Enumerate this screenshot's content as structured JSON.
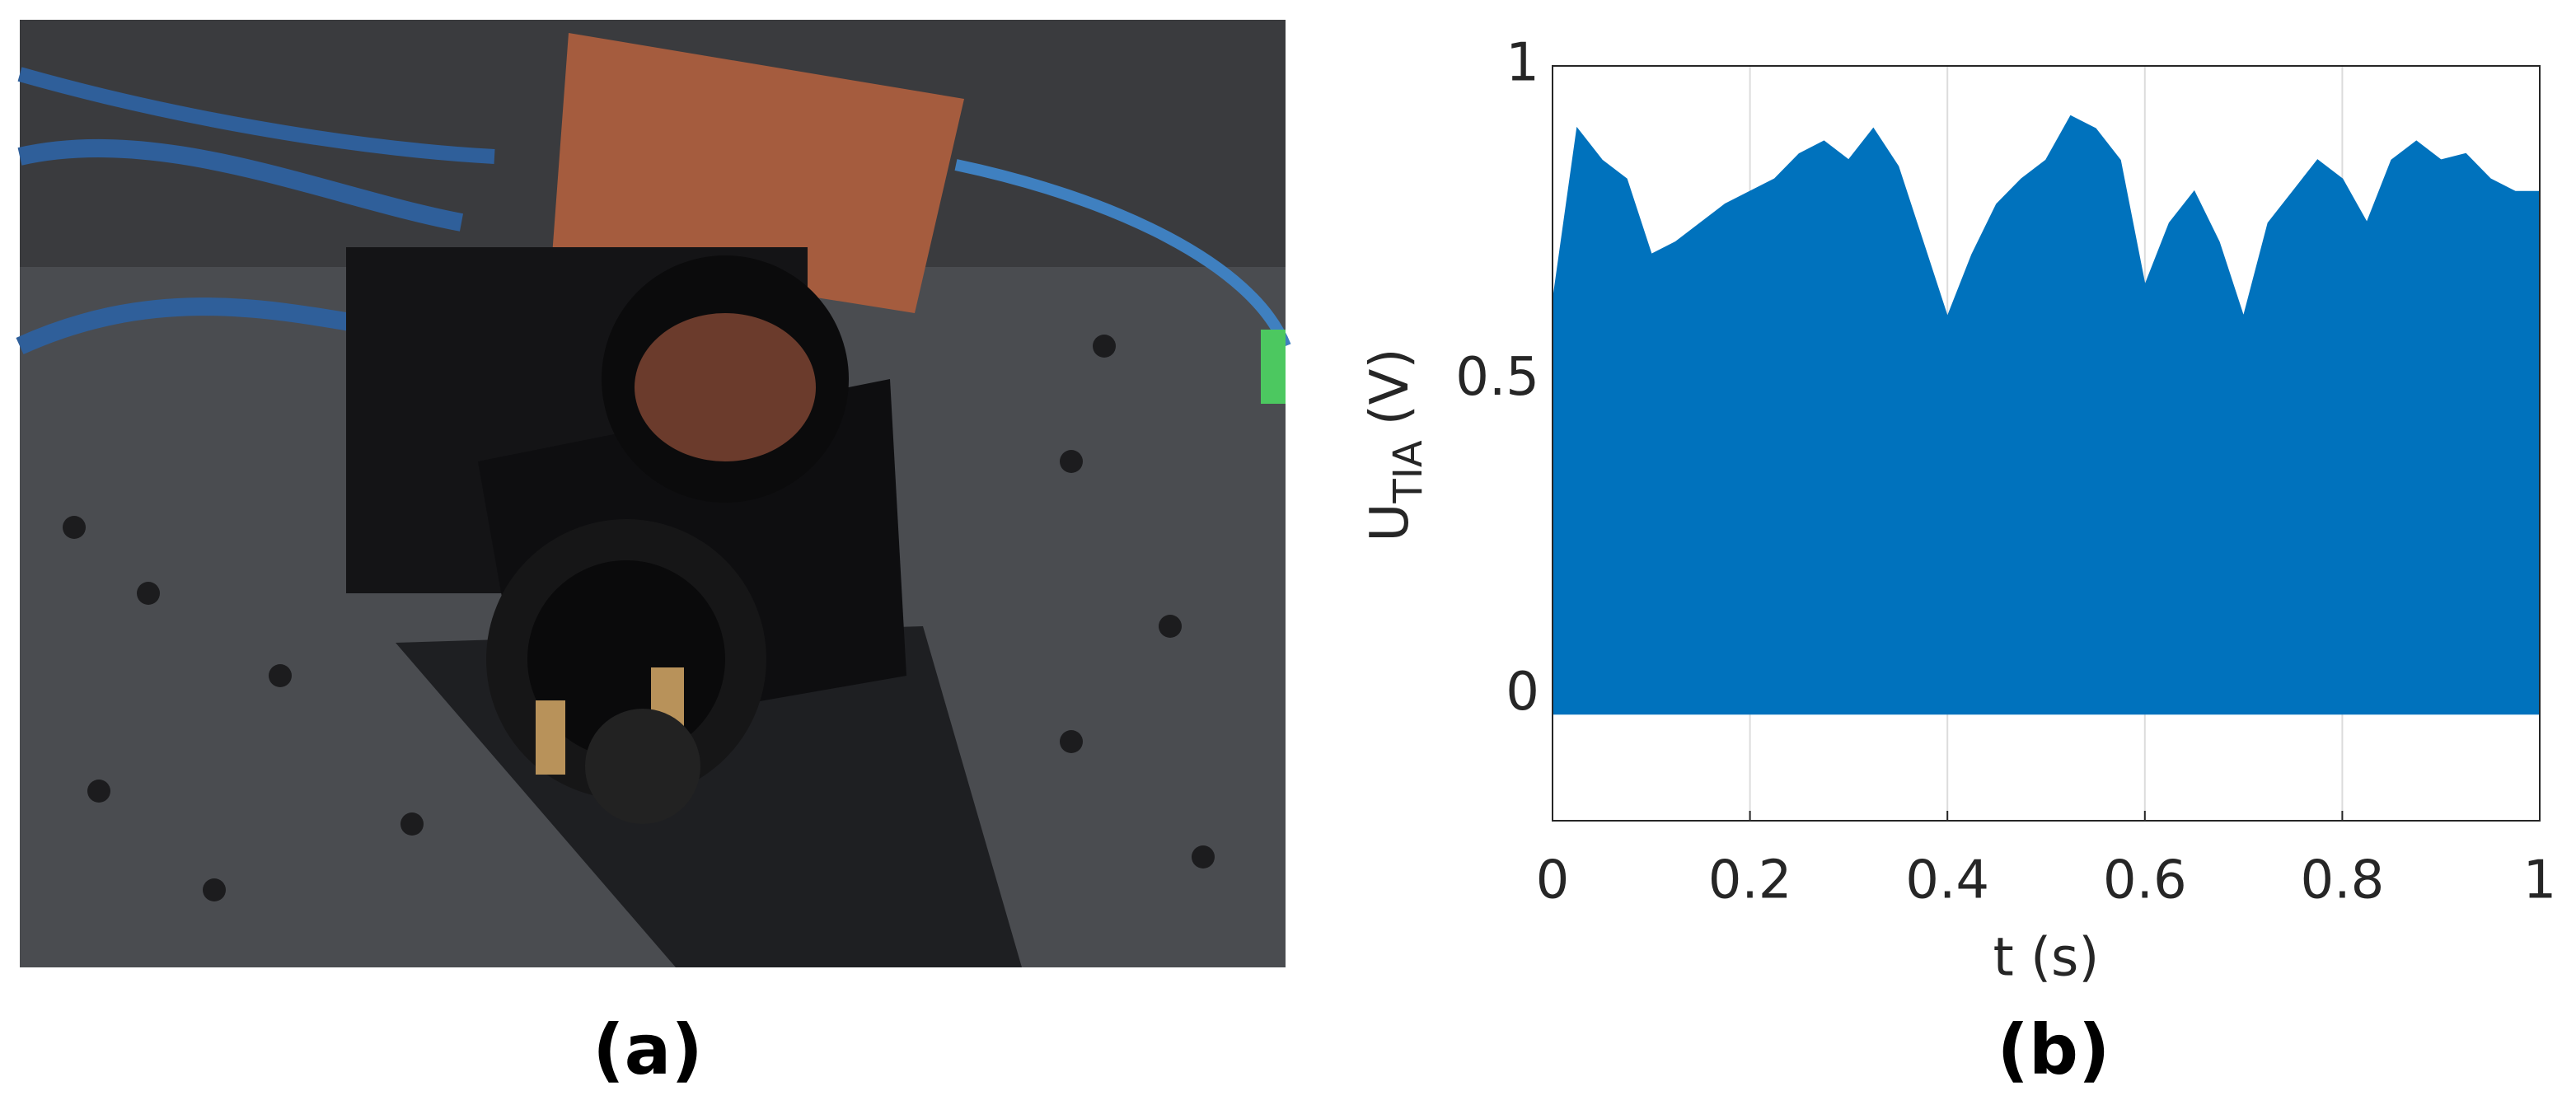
{
  "photo": {
    "caption": "(a)"
  },
  "chart_data": {
    "type": "range_area",
    "caption": "(b)",
    "xlabel": "t (s)",
    "ylabel": "U",
    "ylabel_sub": "TIA",
    "ylabel_unit": "(V)",
    "color": "#0072bd",
    "x": [
      0,
      0.025,
      0.05,
      0.075,
      0.1,
      0.125,
      0.15,
      0.175,
      0.2,
      0.225,
      0.25,
      0.275,
      0.3,
      0.325,
      0.35,
      0.375,
      0.4,
      0.425,
      0.45,
      0.475,
      0.5,
      0.525,
      0.55,
      0.575,
      0.6,
      0.625,
      0.65,
      0.675,
      0.7,
      0.725,
      0.75,
      0.775,
      0.8,
      0.825,
      0.85,
      0.875,
      0.9,
      0.925,
      0.95,
      0.975,
      1
    ],
    "values": [
      0.62,
      0.9,
      0.85,
      0.82,
      0.7,
      0.72,
      0.75,
      0.78,
      0.8,
      0.82,
      0.86,
      0.88,
      0.85,
      0.9,
      0.84,
      0.72,
      0.6,
      0.7,
      0.78,
      0.82,
      0.85,
      0.92,
      0.9,
      0.85,
      0.65,
      0.75,
      0.8,
      0.72,
      0.6,
      0.75,
      0.8,
      0.85,
      0.82,
      0.75,
      0.85,
      0.88,
      0.85,
      0.86,
      0.82,
      0.8,
      0.8
    ],
    "low_values": [
      -0.03,
      -0.03,
      -0.03,
      -0.03,
      -0.03,
      -0.03,
      -0.03,
      -0.03,
      -0.03,
      -0.03,
      -0.03,
      -0.03,
      -0.03,
      -0.03,
      -0.03,
      -0.03,
      -0.03,
      -0.03,
      -0.03,
      -0.03,
      -0.03,
      -0.03,
      -0.03,
      -0.03,
      -0.03,
      -0.03,
      -0.03,
      -0.03,
      -0.03,
      -0.03,
      -0.03,
      -0.03,
      -0.03,
      -0.03,
      -0.03,
      -0.03,
      -0.03,
      -0.03,
      -0.03,
      -0.03,
      -0.03
    ],
    "xlim": [
      0,
      1
    ],
    "xticks": [
      0,
      0.2,
      0.4,
      0.6,
      0.8,
      1
    ],
    "ylim": [
      -0.2,
      1
    ],
    "yticks": [
      0,
      0.5,
      1
    ],
    "grid": true
  }
}
